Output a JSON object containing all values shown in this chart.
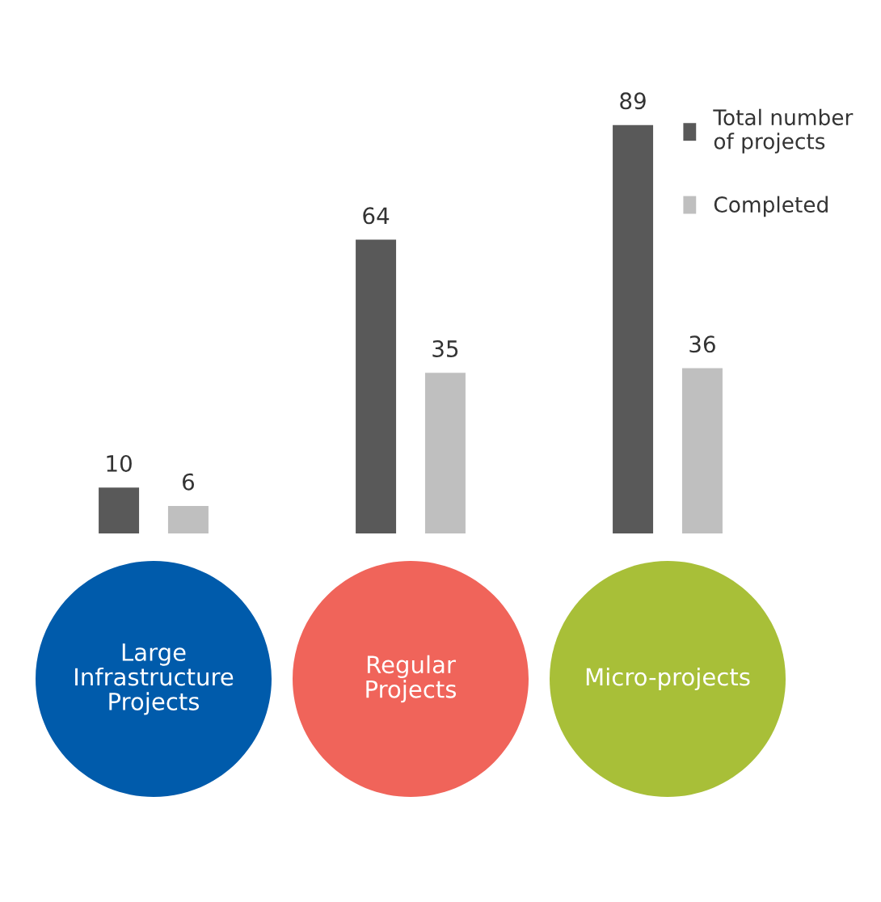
{
  "chart_data": {
    "type": "bar",
    "categories": [
      "Large\nInfrastructure\nProjects",
      "Regular\nProjects",
      "Micro-projects"
    ],
    "series": [
      {
        "name": "Total number\nof projects",
        "color": "#595959",
        "values": [
          10,
          64,
          89
        ]
      },
      {
        "name": "Completed",
        "color": "#bfbfbf",
        "values": [
          6,
          35,
          36
        ]
      }
    ],
    "data_labels": true,
    "legend": "top right"
  }
}
